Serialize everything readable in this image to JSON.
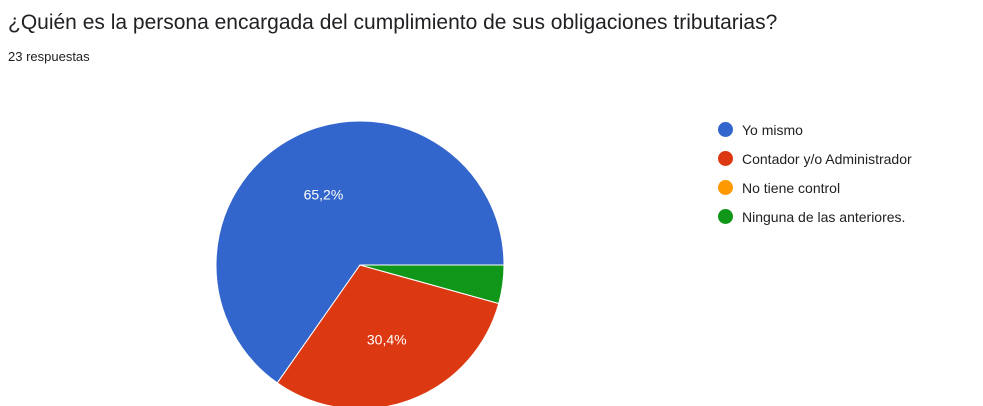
{
  "question": {
    "title": "¿Quién es la persona encargada del cumplimiento de sus obligaciones tributarias?",
    "responses": "23 respuestas"
  },
  "chart_data": {
    "type": "pie",
    "categories": [
      "Yo mismo",
      "Contador y/o Administrador",
      "No tiene control",
      "Ninguna de las anteriores."
    ],
    "values": [
      65.2,
      30.4,
      0,
      4.3
    ],
    "data_labels": [
      "65,2%",
      "30,4%",
      "",
      ""
    ],
    "colors": [
      "#3366cc",
      "#dc3912",
      "#ff9900",
      "#109618"
    ],
    "legend_position": "right"
  }
}
